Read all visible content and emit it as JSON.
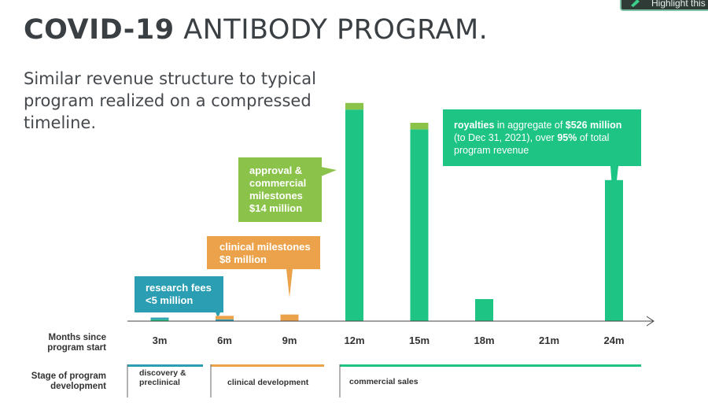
{
  "title_bold": "COVID-19",
  "title_rest": "ANTIBODY PROGRAM.",
  "subtitle": "Similar revenue structure to typical program realized on a compressed timeline.",
  "top_button": "Highlight this",
  "callouts": {
    "research": {
      "label": "research fees",
      "amount": "<5 million"
    },
    "clinical": {
      "label": "clinical milestones",
      "amount": "$8 million"
    },
    "approval": {
      "label": "approval & commercial milestones",
      "amount": "$14 million"
    },
    "royalty": {
      "bold1": "royalties",
      "text1": " in aggregate of ",
      "bold2": "$526 million",
      "text2": " (to Dec 31, 2021), over ",
      "bold3": "95%",
      "text3": " of total program revenue"
    }
  },
  "row_labels": {
    "months": "Months since program start",
    "stage": "Stage of program development"
  },
  "stages": [
    {
      "label": "discovery & preclinical",
      "color": "#2b9eb3"
    },
    {
      "label": "clinical development",
      "color": "#eba24a"
    },
    {
      "label": "commercial sales",
      "color": "#1dc483"
    }
  ],
  "colors": {
    "research": "#2b9eb3",
    "clinical": "#eba24a",
    "approval": "#8bc34a",
    "royalty": "#1dc483"
  },
  "chart_data": {
    "type": "bar",
    "title": "",
    "xlabel": "Months since program start",
    "ylabel": "",
    "categories": [
      "3m",
      "6m",
      "9m",
      "12m",
      "15m",
      "18m",
      "21m",
      "24m"
    ],
    "series": [
      {
        "name": "research fees",
        "values": [
          0.8,
          0.8,
          0,
          0,
          0,
          0,
          0,
          0
        ]
      },
      {
        "name": "clinical milestones",
        "values": [
          0,
          1.6,
          3.0,
          0,
          0,
          0,
          0,
          0
        ]
      },
      {
        "name": "approval & commercial milestones",
        "values": [
          0,
          0,
          0,
          3.0,
          3.0,
          0,
          0,
          0
        ]
      },
      {
        "name": "royalties",
        "values": [
          0.8,
          0,
          0,
          96,
          87,
          10,
          0,
          64
        ]
      }
    ],
    "ylim": [
      0,
      110
    ],
    "grid": false
  }
}
